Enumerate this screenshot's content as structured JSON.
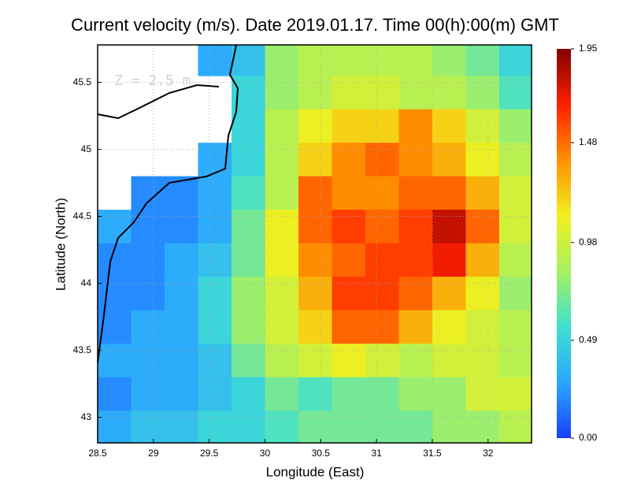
{
  "chart_data": {
    "type": "heatmap",
    "title": "Current velocity (m/s). Date 2019.01.17. Time 00(h):00(m) GMT",
    "annotation": "Z = 2.5 m",
    "x_label": "Longitude (East)",
    "y_label": "Latitude (North)",
    "xlim": [
      28.5,
      32.39
    ],
    "ylim": [
      42.81,
      45.78
    ],
    "xticks": [
      28.5,
      29,
      29.5,
      30,
      30.5,
      31,
      31.5,
      32
    ],
    "yticks": [
      43,
      43.5,
      44,
      44.5,
      45,
      45.5
    ],
    "grid": true,
    "x": [
      28.65,
      28.95,
      29.25,
      29.55,
      29.85,
      30.15,
      30.45,
      30.75,
      31.05,
      31.35,
      31.65,
      31.95,
      32.25
    ],
    "y": [
      45.675,
      45.425,
      45.175,
      44.925,
      44.675,
      44.425,
      44.175,
      43.925,
      43.675,
      43.425,
      43.175,
      42.925
    ],
    "values": [
      [
        null,
        null,
        null,
        0.3,
        0.4,
        0.8,
        0.9,
        0.9,
        0.9,
        0.9,
        0.8,
        0.7,
        0.5
      ],
      [
        null,
        null,
        null,
        null,
        0.5,
        0.8,
        0.9,
        1.0,
        1.0,
        0.9,
        0.9,
        0.8,
        0.6
      ],
      [
        null,
        null,
        null,
        null,
        0.5,
        0.9,
        1.1,
        1.2,
        1.2,
        1.4,
        1.2,
        1.0,
        0.8
      ],
      [
        null,
        null,
        null,
        0.3,
        0.5,
        0.9,
        1.2,
        1.4,
        1.5,
        1.4,
        1.3,
        1.1,
        0.9
      ],
      [
        null,
        0.2,
        0.2,
        0.3,
        0.6,
        0.9,
        1.5,
        1.4,
        1.4,
        1.5,
        1.5,
        1.3,
        1.0
      ],
      [
        0.3,
        0.2,
        0.2,
        0.3,
        0.7,
        1.1,
        1.5,
        1.6,
        1.5,
        1.6,
        1.8,
        1.5,
        1.0
      ],
      [
        0.2,
        0.2,
        0.3,
        0.4,
        0.7,
        1.1,
        1.4,
        1.5,
        1.6,
        1.6,
        1.7,
        1.3,
        0.9
      ],
      [
        0.2,
        0.2,
        0.3,
        0.5,
        0.8,
        1.0,
        1.3,
        1.6,
        1.6,
        1.5,
        1.3,
        1.1,
        0.8
      ],
      [
        0.2,
        0.3,
        0.3,
        0.5,
        0.8,
        1.0,
        1.2,
        1.5,
        1.5,
        1.3,
        1.1,
        1.0,
        0.9
      ],
      [
        0.3,
        0.3,
        0.3,
        0.4,
        0.7,
        0.9,
        1.0,
        1.1,
        1.0,
        0.9,
        1.0,
        1.0,
        0.9
      ],
      [
        0.2,
        0.3,
        0.3,
        0.4,
        0.5,
        0.7,
        0.6,
        0.7,
        0.7,
        0.8,
        0.8,
        1.0,
        1.0
      ],
      [
        0.3,
        0.4,
        0.4,
        0.5,
        0.5,
        0.6,
        0.7,
        0.7,
        0.7,
        0.7,
        0.8,
        0.8,
        0.9
      ]
    ],
    "colorbar_lim": [
      0,
      1.95
    ],
    "colorbar_ticks": [
      {
        "value": 0,
        "label": "0.00"
      },
      {
        "value": 0.49,
        "label": "0.49"
      },
      {
        "value": 0.98,
        "label": "0.98"
      },
      {
        "value": 1.48,
        "label": "1.48"
      },
      {
        "value": 1.95,
        "label": "1.95"
      }
    ],
    "colormap": [
      "#1a40ff",
      "#2aa8ff",
      "#40e0d0",
      "#a8f060",
      "#f0f020",
      "#ff9000",
      "#ff2000",
      "#800000"
    ]
  }
}
